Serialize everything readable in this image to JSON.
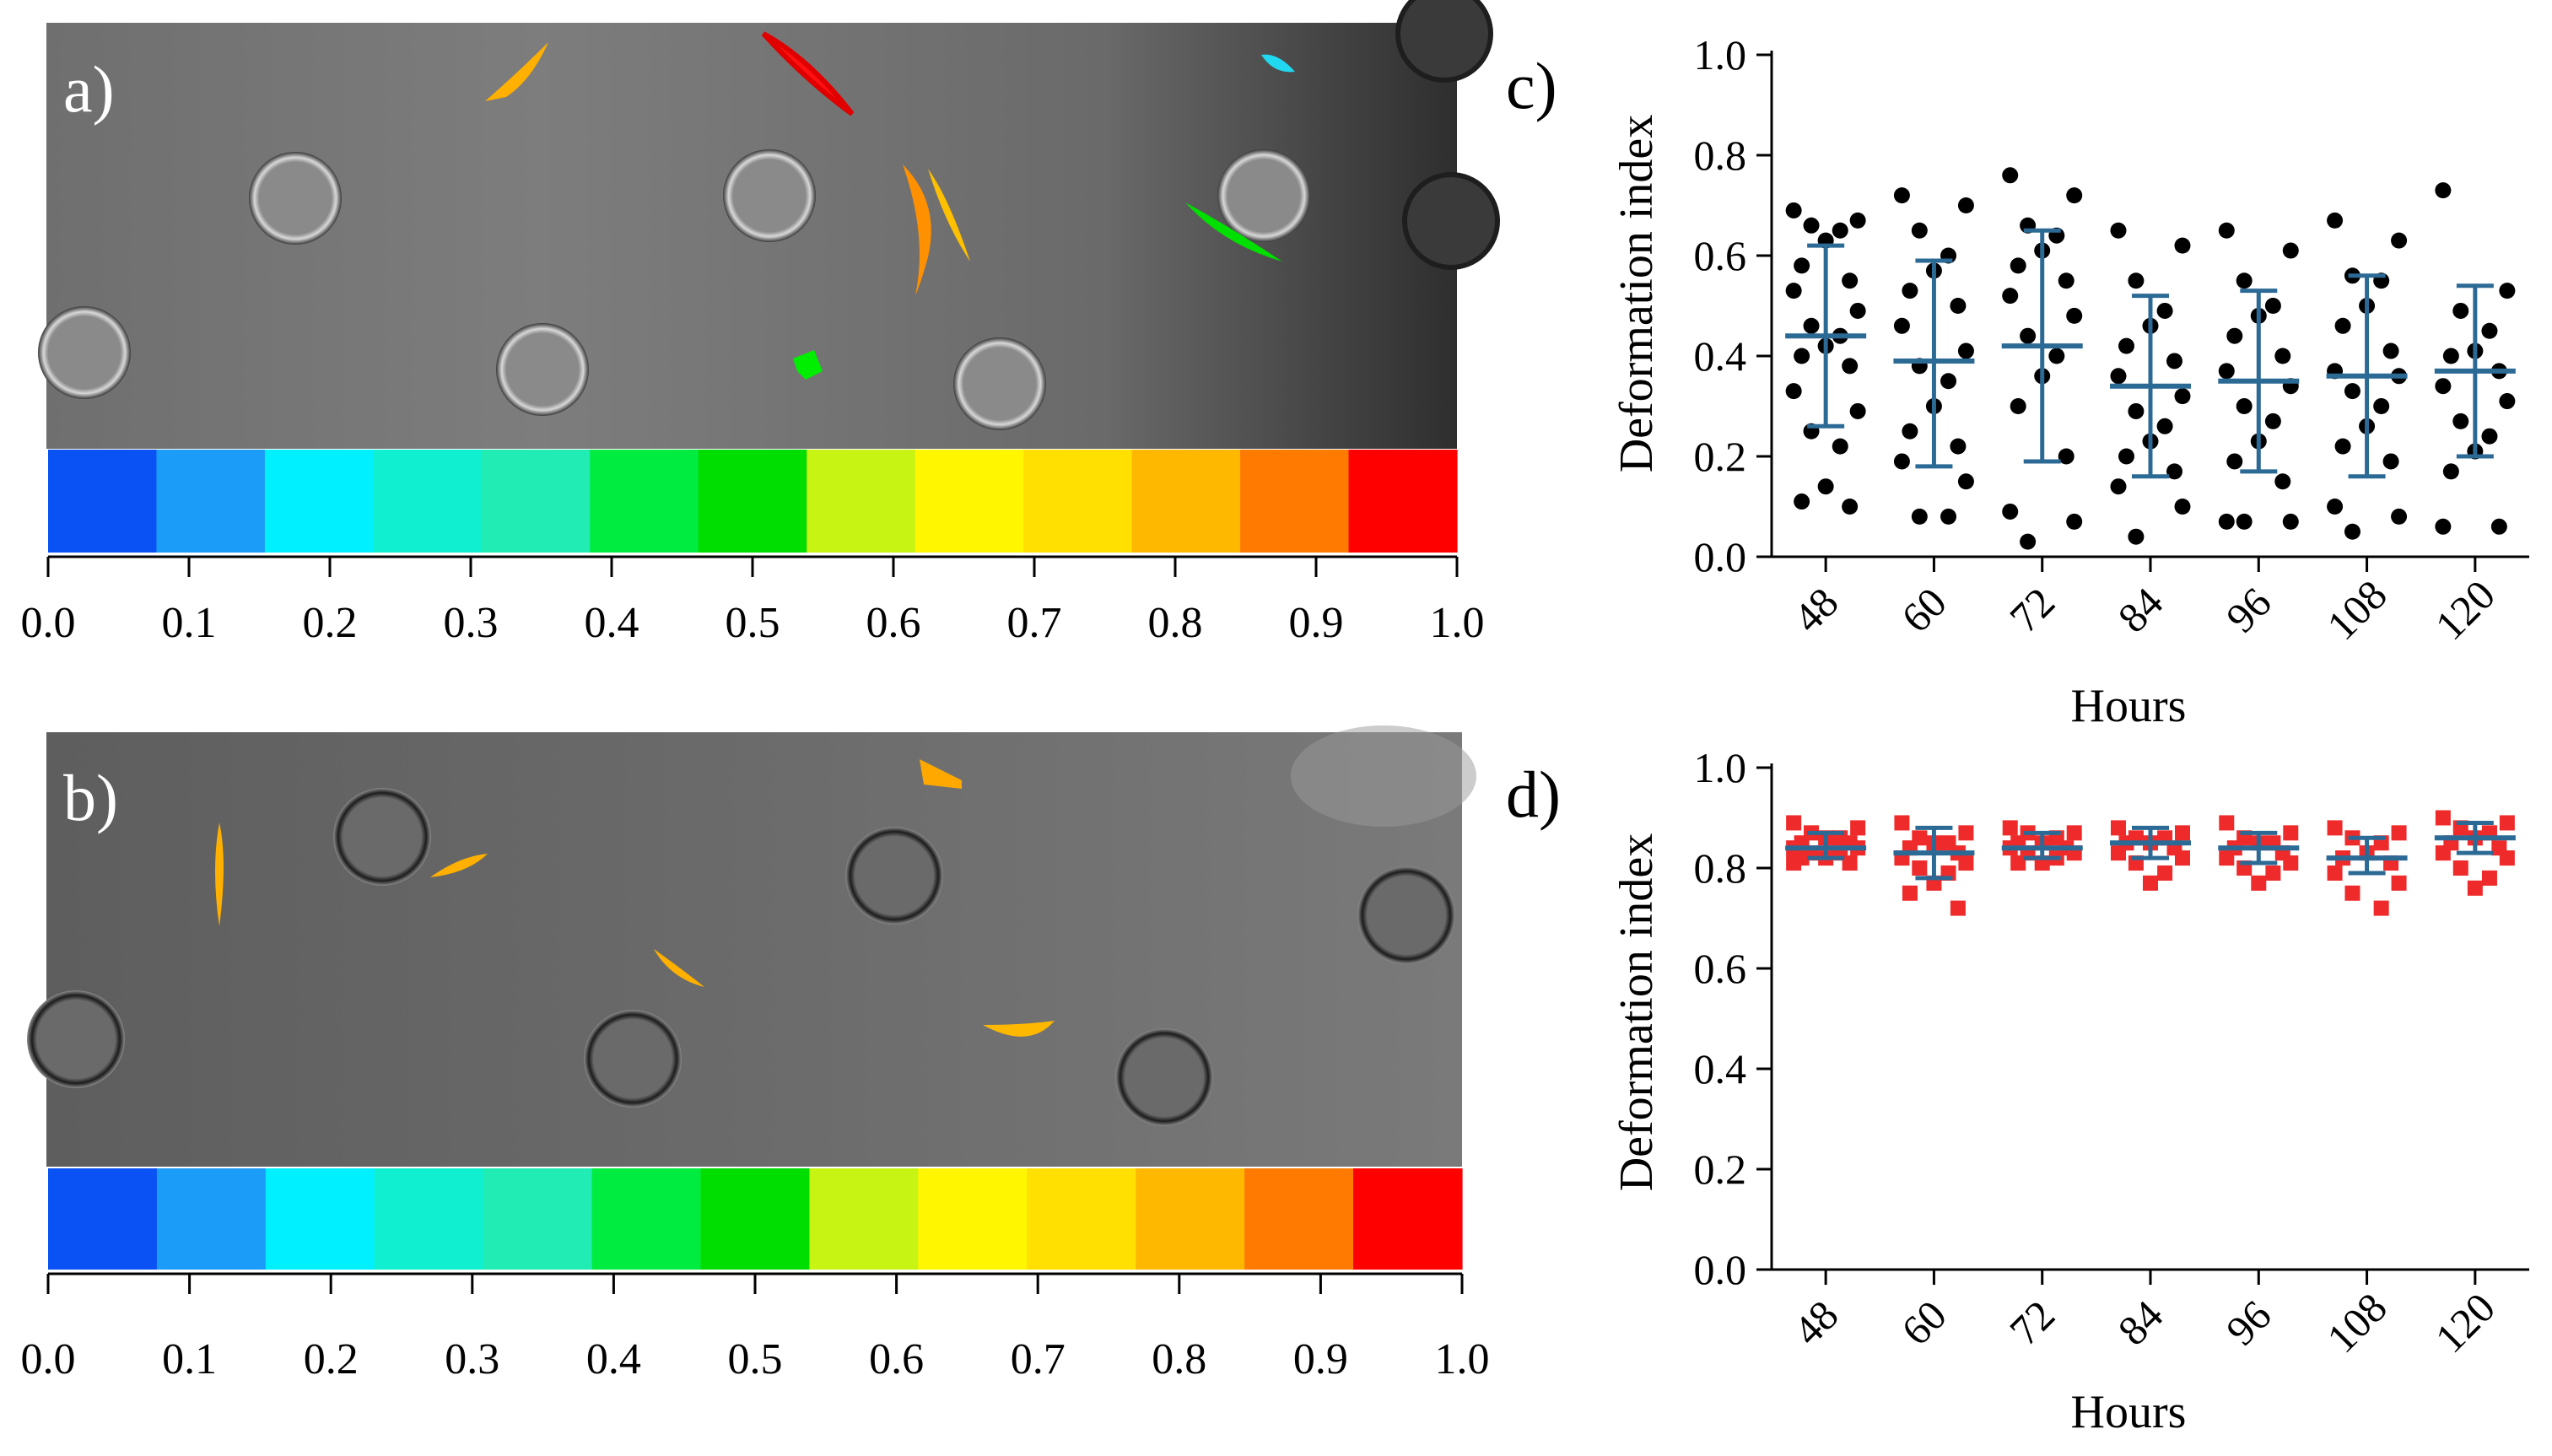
{
  "colors": {
    "mean_bar": "#2c6a96",
    "dot_c": "#000000",
    "dot_d": "#ee2a2a",
    "scale": [
      "#0a52f4",
      "#1a9cf8",
      "#00f0ff",
      "#10f0d0",
      "#20ecb4",
      "#00ec40",
      "#00dd00",
      "#c8f414",
      "#fff600",
      "#ffe000",
      "#ffb800",
      "#ff7a00",
      "#ff0000"
    ]
  },
  "images": [
    {
      "panel_label": "a)",
      "scale_ticks": [
        "0.0",
        "0.1",
        "0.2",
        "0.3",
        "0.4",
        "0.5",
        "0.6",
        "0.7",
        "0.8",
        "0.9",
        "1.0"
      ]
    },
    {
      "panel_label": "b)",
      "scale_ticks": [
        "0.0",
        "0.1",
        "0.2",
        "0.3",
        "0.4",
        "0.5",
        "0.6",
        "0.7",
        "0.8",
        "0.9",
        "1.0"
      ]
    }
  ],
  "chart_data": [
    {
      "panel_label": "c)",
      "type": "scatter",
      "ylabel": "Deformation index",
      "xlabel": "Hours",
      "ylim": [
        0.0,
        1.0
      ],
      "yticks": [
        "0.0",
        "0.2",
        "0.4",
        "0.6",
        "0.8",
        "1.0"
      ],
      "categories": [
        "48",
        "60",
        "72",
        "84",
        "96",
        "108",
        "120"
      ],
      "means": [
        0.44,
        0.39,
        0.42,
        0.34,
        0.35,
        0.36,
        0.37
      ],
      "sd_low": [
        0.26,
        0.18,
        0.19,
        0.16,
        0.17,
        0.16,
        0.2
      ],
      "sd_high": [
        0.62,
        0.59,
        0.65,
        0.52,
        0.53,
        0.56,
        0.54
      ],
      "points": [
        [
          0.69,
          0.67,
          0.66,
          0.65,
          0.63,
          0.58,
          0.55,
          0.53,
          0.49,
          0.46,
          0.44,
          0.42,
          0.4,
          0.38,
          0.33,
          0.29,
          0.25,
          0.22,
          0.14,
          0.11,
          0.1
        ],
        [
          0.72,
          0.7,
          0.65,
          0.6,
          0.57,
          0.53,
          0.5,
          0.46,
          0.41,
          0.38,
          0.35,
          0.3,
          0.25,
          0.22,
          0.19,
          0.15,
          0.08,
          0.08
        ],
        [
          0.76,
          0.72,
          0.66,
          0.64,
          0.61,
          0.58,
          0.55,
          0.52,
          0.48,
          0.44,
          0.4,
          0.36,
          0.3,
          0.2,
          0.09,
          0.07,
          0.03
        ],
        [
          0.65,
          0.62,
          0.55,
          0.49,
          0.46,
          0.42,
          0.39,
          0.36,
          0.32,
          0.29,
          0.26,
          0.23,
          0.2,
          0.17,
          0.14,
          0.1,
          0.04
        ],
        [
          0.65,
          0.61,
          0.55,
          0.5,
          0.48,
          0.44,
          0.4,
          0.37,
          0.34,
          0.3,
          0.27,
          0.23,
          0.19,
          0.15,
          0.07,
          0.07,
          0.07
        ],
        [
          0.67,
          0.63,
          0.56,
          0.55,
          0.5,
          0.46,
          0.41,
          0.37,
          0.36,
          0.33,
          0.3,
          0.26,
          0.22,
          0.19,
          0.1,
          0.08,
          0.05
        ],
        [
          0.73,
          0.53,
          0.49,
          0.45,
          0.41,
          0.4,
          0.37,
          0.34,
          0.31,
          0.27,
          0.24,
          0.21,
          0.17,
          0.06,
          0.06
        ]
      ]
    },
    {
      "panel_label": "d)",
      "type": "scatter",
      "ylabel": "Deformation index",
      "xlabel": "Hours",
      "ylim": [
        0.0,
        1.0
      ],
      "yticks": [
        "0.0",
        "0.2",
        "0.4",
        "0.6",
        "0.8",
        "1.0"
      ],
      "categories": [
        "48",
        "60",
        "72",
        "84",
        "96",
        "108",
        "120"
      ],
      "means": [
        0.84,
        0.83,
        0.84,
        0.85,
        0.84,
        0.82,
        0.86
      ],
      "sd_low": [
        0.82,
        0.78,
        0.82,
        0.82,
        0.81,
        0.79,
        0.83
      ],
      "sd_high": [
        0.87,
        0.88,
        0.87,
        0.88,
        0.87,
        0.86,
        0.89
      ],
      "points": [
        [
          0.89,
          0.88,
          0.87,
          0.86,
          0.86,
          0.85,
          0.85,
          0.84,
          0.84,
          0.83,
          0.83,
          0.82,
          0.82,
          0.81,
          0.81
        ],
        [
          0.89,
          0.87,
          0.86,
          0.85,
          0.85,
          0.84,
          0.83,
          0.82,
          0.81,
          0.8,
          0.79,
          0.77,
          0.75,
          0.72
        ],
        [
          0.88,
          0.87,
          0.87,
          0.86,
          0.85,
          0.85,
          0.84,
          0.84,
          0.83,
          0.83,
          0.82,
          0.81,
          0.81
        ],
        [
          0.88,
          0.87,
          0.86,
          0.86,
          0.85,
          0.85,
          0.84,
          0.83,
          0.82,
          0.81,
          0.79,
          0.77
        ],
        [
          0.89,
          0.87,
          0.86,
          0.85,
          0.85,
          0.84,
          0.83,
          0.82,
          0.81,
          0.8,
          0.79,
          0.77
        ],
        [
          0.88,
          0.87,
          0.86,
          0.85,
          0.83,
          0.82,
          0.81,
          0.79,
          0.77,
          0.75,
          0.72
        ],
        [
          0.9,
          0.89,
          0.88,
          0.87,
          0.86,
          0.85,
          0.84,
          0.83,
          0.82,
          0.8,
          0.78,
          0.76
        ]
      ]
    }
  ]
}
